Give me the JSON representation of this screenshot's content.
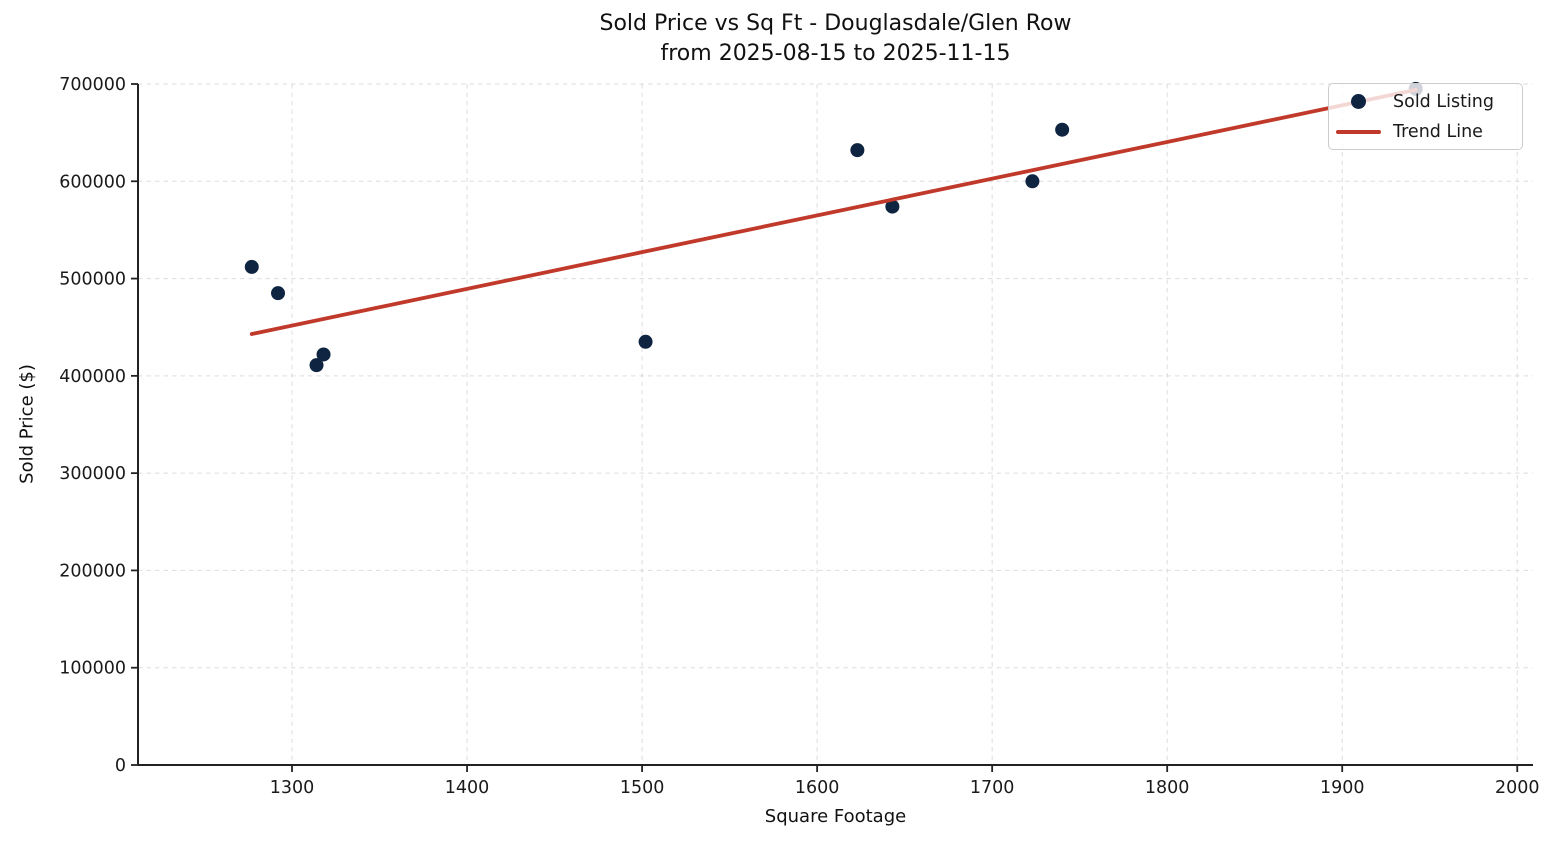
{
  "title": {
    "line1": "Sold Price vs Sq Ft - Douglasdale/Glen Row",
    "line2": "from 2025-08-15 to 2025-11-15"
  },
  "colors": {
    "point": "#0f2440",
    "trend": "#c0392b",
    "grid": "#cfcfcf",
    "spine": "#222222",
    "text": "#1a1a1a"
  },
  "legend": {
    "entries": [
      {
        "label": "Sold Listing",
        "marker": "point",
        "color": "#0f2440"
      },
      {
        "label": "Trend Line",
        "marker": "line",
        "color": "#c0392b"
      }
    ]
  },
  "chart_data": {
    "type": "scatter",
    "title": "Sold Price vs Sq Ft - Douglasdale/Glen Row",
    "subtitle": "from 2025-08-15 to 2025-11-15",
    "xlabel": "Square Footage",
    "ylabel": "Sold Price ($)",
    "xlim": [
      1212,
      2009
    ],
    "ylim": [
      0,
      700000
    ],
    "x_ticks": [
      1300,
      1400,
      1500,
      1600,
      1700,
      1800,
      1900,
      2000
    ],
    "y_ticks": [
      0,
      100000,
      200000,
      300000,
      400000,
      500000,
      600000,
      700000
    ],
    "grid": true,
    "legend_position": "upper right",
    "series": [
      {
        "name": "Sold Listing",
        "type": "scatter",
        "color": "#0f2440",
        "points": [
          [
            1277,
            512000
          ],
          [
            1292,
            485000
          ],
          [
            1314,
            411000
          ],
          [
            1318,
            422000
          ],
          [
            1502,
            435000
          ],
          [
            1623,
            632000
          ],
          [
            1643,
            574000
          ],
          [
            1723,
            600000
          ],
          [
            1740,
            653000
          ],
          [
            1942,
            695000
          ]
        ]
      },
      {
        "name": "Trend Line",
        "type": "line",
        "color": "#c0392b",
        "points": [
          [
            1277,
            443000
          ],
          [
            1942,
            694000
          ]
        ]
      }
    ]
  }
}
